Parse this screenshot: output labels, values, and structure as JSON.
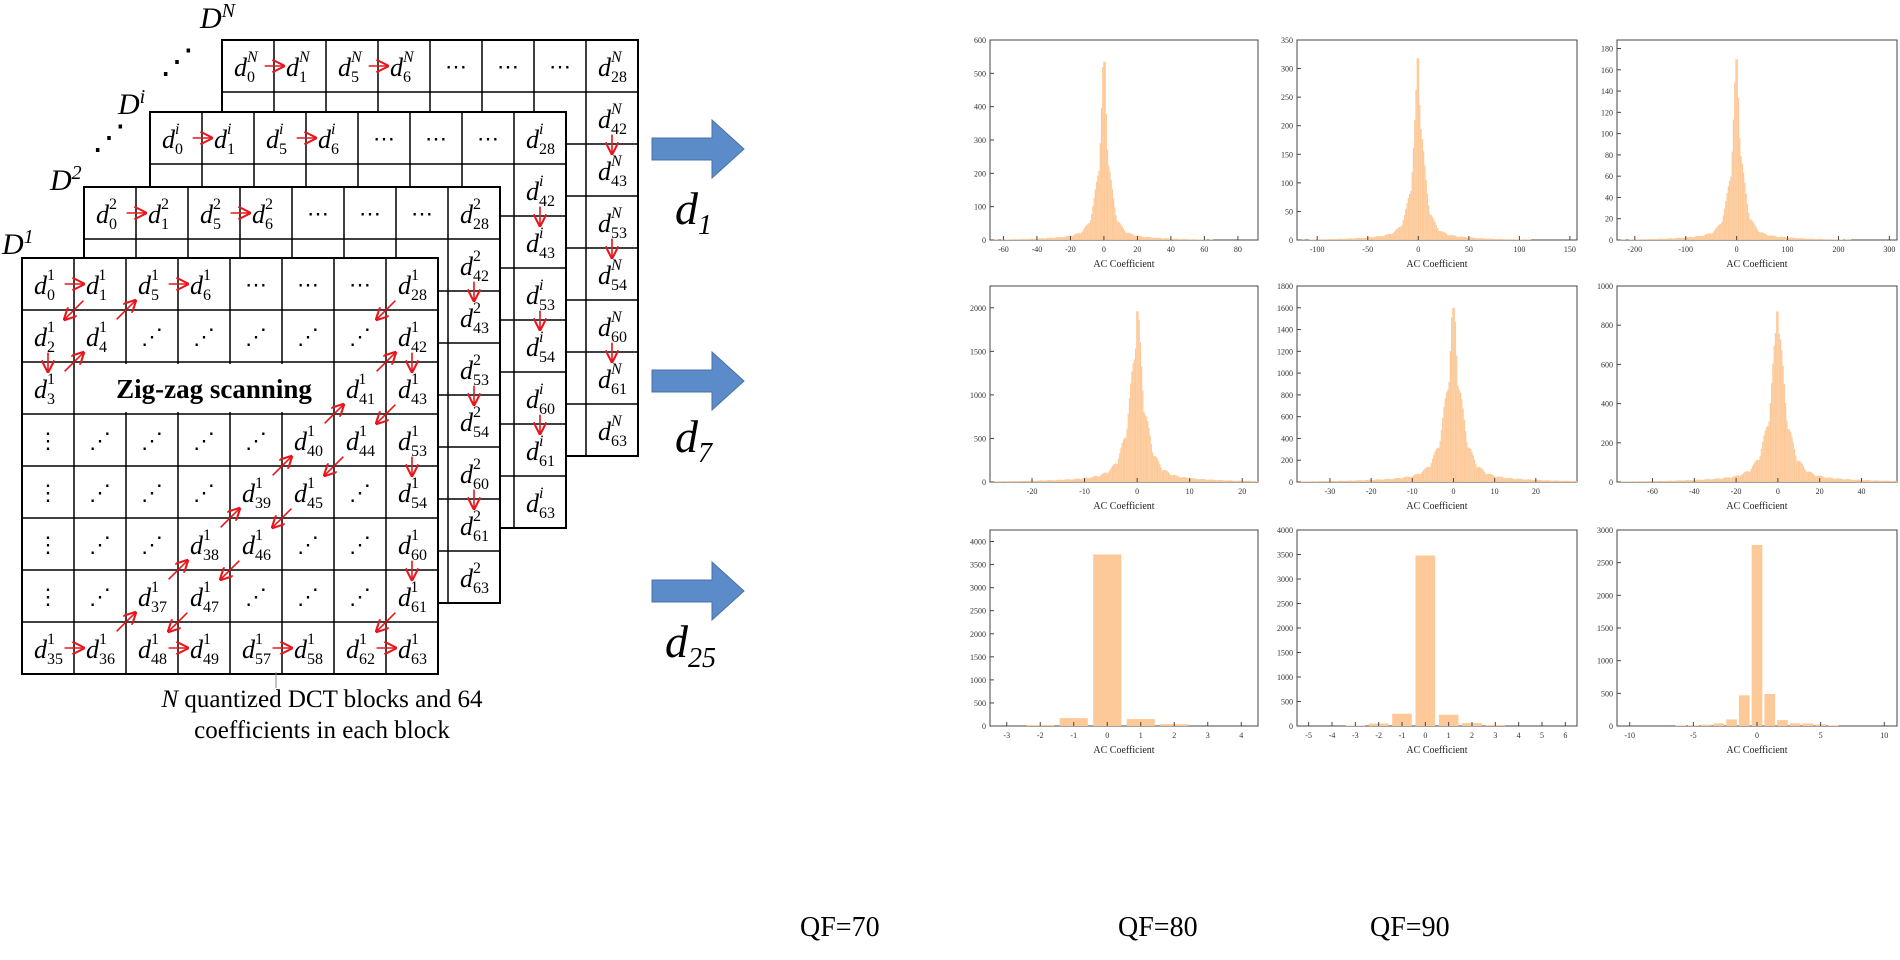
{
  "blocks": {
    "layers": [
      {
        "label": "D",
        "sup": "N"
      },
      {
        "label": "D",
        "sup": "i"
      },
      {
        "label": "D",
        "sup": "2"
      },
      {
        "label": "D",
        "sup": "1"
      }
    ],
    "ellipsis": "⋰",
    "center_label": "Zig-zag scanning",
    "rows": [
      [
        "0",
        "1",
        "5",
        "6",
        "⋯",
        "⋯",
        "⋯",
        "28"
      ],
      [
        "2",
        "4",
        "⋰",
        "⋰",
        "⋰",
        "⋰",
        "⋰",
        "42"
      ],
      [
        "3",
        "",
        "",
        "",
        "",
        "",
        "41",
        "43"
      ],
      [
        "⋮",
        "⋰",
        "⋰",
        "⋰",
        "⋰",
        "40",
        "44",
        "53"
      ],
      [
        "⋮",
        "⋰",
        "⋰",
        "⋰",
        "39",
        "45",
        "⋰",
        "54"
      ],
      [
        "⋮",
        "⋰",
        "⋰",
        "38",
        "46",
        "⋰",
        "⋰",
        "60"
      ],
      [
        "⋮",
        "⋰",
        "37",
        "47",
        "⋰",
        "⋰",
        "⋰",
        "61"
      ],
      [
        "35",
        "36",
        "48",
        "49",
        "57",
        "58",
        "62",
        "63"
      ]
    ],
    "caption_line1": "N quantized DCT blocks and 64",
    "caption_line2": "coefficients in each block",
    "arrow_color": "#e8161b"
  },
  "row_labels": [
    {
      "base": "d",
      "sub": "1"
    },
    {
      "base": "d",
      "sub": "7"
    },
    {
      "base": "d",
      "sub": "25"
    }
  ],
  "column_labels": [
    "QF=70",
    "QF=80",
    "QF=90"
  ],
  "colors": {
    "bar": "#fdc998",
    "block_arrow": "#5b8bc9"
  },
  "chart_data": [
    {
      "type": "bar",
      "row": "d1",
      "qf": "QF=70",
      "xlabel": "AC Coefficient",
      "xlim": [
        -68,
        92
      ],
      "ylim": [
        0,
        600
      ],
      "xticks": [
        -60,
        -40,
        -20,
        0,
        20,
        40,
        60,
        80
      ],
      "yticks": [
        0,
        100,
        200,
        300,
        400,
        500,
        600
      ],
      "peak": 535
    },
    {
      "type": "bar",
      "row": "d1",
      "qf": "QF=80",
      "xlabel": "AC Coefficient",
      "xlim": [
        -120,
        157
      ],
      "ylim": [
        0,
        350
      ],
      "xticks": [
        -100,
        -50,
        0,
        50,
        100,
        150
      ],
      "yticks": [
        0,
        50,
        100,
        150,
        200,
        250,
        300,
        350
      ],
      "peak": 318
    },
    {
      "type": "bar",
      "row": "d1",
      "qf": "QF=90",
      "xlabel": "AC Coefficient",
      "xlim": [
        -235,
        315
      ],
      "ylim": [
        0,
        188
      ],
      "xticks": [
        -200,
        -100,
        0,
        100,
        200,
        300
      ],
      "yticks": [
        0,
        20,
        40,
        60,
        80,
        100,
        120,
        140,
        160,
        180
      ],
      "peak": 170
    },
    {
      "type": "bar",
      "row": "d7",
      "qf": "QF=70",
      "xlabel": "AC Coefficient",
      "xlim": [
        -28,
        23
      ],
      "ylim": [
        0,
        2250
      ],
      "xticks": [
        -20,
        -10,
        0,
        10,
        20
      ],
      "yticks": [
        0,
        500,
        1000,
        1500,
        2000
      ],
      "peak": 1960
    },
    {
      "type": "bar",
      "row": "d7",
      "qf": "QF=80",
      "xlabel": "AC Coefficient",
      "xlim": [
        -38,
        30
      ],
      "ylim": [
        0,
        1800
      ],
      "xticks": [
        -30,
        -20,
        -10,
        0,
        10,
        20
      ],
      "yticks": [
        0,
        200,
        400,
        600,
        800,
        1000,
        1200,
        1400,
        1600,
        1800
      ],
      "peak": 1600
    },
    {
      "type": "bar",
      "row": "d7",
      "qf": "QF=90",
      "xlabel": "AC Coefficient",
      "xlim": [
        -77,
        57
      ],
      "ylim": [
        0,
        1000
      ],
      "xticks": [
        -60,
        -40,
        -20,
        0,
        20,
        40
      ],
      "yticks": [
        0,
        200,
        400,
        600,
        800,
        1000
      ],
      "peak": 870
    },
    {
      "type": "bar",
      "row": "d25",
      "qf": "QF=70",
      "xlabel": "AC Coefficient",
      "xlim": [
        -3.5,
        4.5
      ],
      "ylim": [
        0,
        4250
      ],
      "xticks": [
        -3,
        -2,
        -1,
        0,
        1,
        2,
        3,
        4
      ],
      "yticks": [
        0,
        500,
        1000,
        1500,
        2000,
        2500,
        3000,
        3500,
        4000
      ],
      "bins": [
        -2,
        -1,
        0,
        1,
        2
      ],
      "values": [
        20,
        170,
        3720,
        150,
        40
      ]
    },
    {
      "type": "bar",
      "row": "d25",
      "qf": "QF=80",
      "xlabel": "AC Coefficient",
      "xlim": [
        -5.5,
        6.5
      ],
      "ylim": [
        0,
        4000
      ],
      "xticks": [
        -5,
        -4,
        -3,
        -2,
        -1,
        0,
        1,
        2,
        3,
        4,
        5,
        6
      ],
      "yticks": [
        0,
        500,
        1000,
        1500,
        2000,
        2500,
        3000,
        3500,
        4000
      ],
      "bins": [
        -3,
        -2,
        -1,
        0,
        1,
        2,
        3
      ],
      "values": [
        10,
        50,
        250,
        3480,
        230,
        60,
        20
      ]
    },
    {
      "type": "bar",
      "row": "d25",
      "qf": "QF=90",
      "xlabel": "AC Coefficient",
      "xlim": [
        -11,
        11
      ],
      "ylim": [
        0,
        3000
      ],
      "xticks": [
        -10,
        -5,
        0,
        5,
        10
      ],
      "yticks": [
        0,
        500,
        1000,
        1500,
        2000,
        2500,
        3000
      ],
      "bins": [
        -6,
        -5,
        -4,
        -3,
        -2,
        -1,
        0,
        1,
        2,
        3,
        4,
        5,
        6
      ],
      "values": [
        10,
        10,
        20,
        40,
        100,
        470,
        2770,
        490,
        90,
        40,
        40,
        25,
        10
      ]
    }
  ]
}
